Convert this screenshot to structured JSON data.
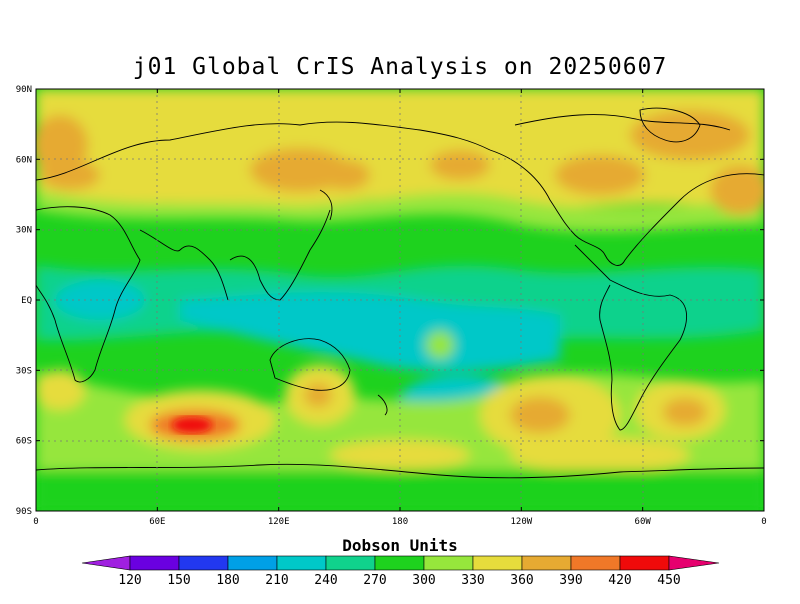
{
  "title": "j01 Global CrIS Analysis on 20250607",
  "lat_ticks": [
    "90N",
    "60N",
    "30N",
    "EQ",
    "30S",
    "60S",
    "90S"
  ],
  "lon_ticks": [
    "0",
    "60E",
    "120E",
    "180",
    "120W",
    "60W",
    "0"
  ],
  "colorbar": {
    "title": "Dobson Units",
    "labels": [
      "120",
      "150",
      "180",
      "210",
      "240",
      "270",
      "300",
      "330",
      "360",
      "390",
      "420",
      "450"
    ],
    "colors": [
      "#a020e0",
      "#6a00e0",
      "#2238f0",
      "#00a0e6",
      "#00c8c8",
      "#10d28c",
      "#1ed21e",
      "#96e63c",
      "#e6dc3c",
      "#e6aa32",
      "#f07828",
      "#f00a0a",
      "#e6006e"
    ]
  },
  "background_color": "#1ed21e"
}
